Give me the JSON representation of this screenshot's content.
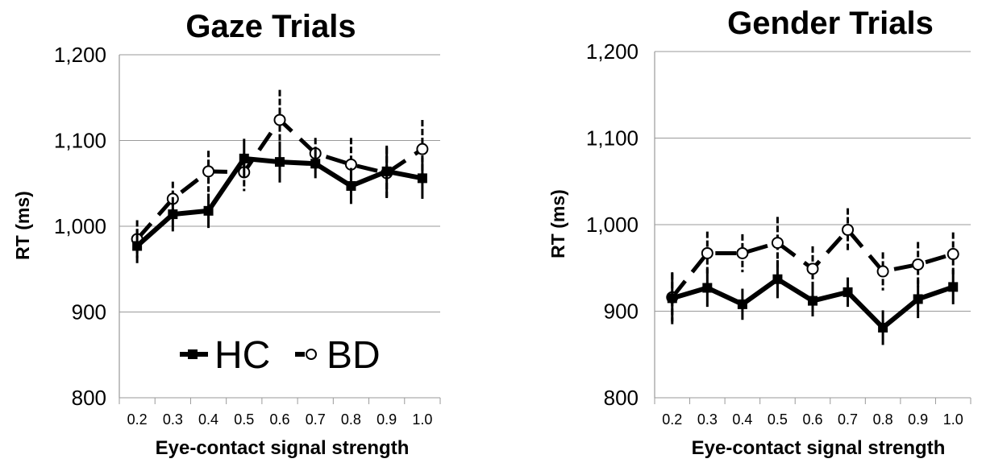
{
  "chart_data": [
    {
      "type": "line",
      "title": "Gaze Trials",
      "xlabel": "Eye-contact signal strength",
      "ylabel": "RT (ms)",
      "categories": [
        "0.2",
        "0.3",
        "0.4",
        "0.5",
        "0.6",
        "0.7",
        "0.8",
        "0.9",
        "1.0"
      ],
      "ylim": [
        800,
        1200
      ],
      "yticks": [
        "800",
        "900",
        "1,000",
        "1,100",
        "1,200"
      ],
      "grid": true,
      "legend_position": "bottom-center",
      "series": [
        {
          "name": "HC",
          "marker": "square",
          "line": "solid",
          "values": [
            977,
            1014,
            1018,
            1079,
            1075,
            1073,
            1047,
            1064,
            1056
          ],
          "err": [
            20,
            20,
            20,
            23,
            24,
            17,
            21,
            30,
            24
          ]
        },
        {
          "name": "BD",
          "marker": "circle",
          "line": "dashed",
          "values": [
            985,
            1032,
            1064,
            1063,
            1124,
            1085,
            1072,
            1062,
            1090
          ],
          "err": [
            22,
            20,
            24,
            22,
            35,
            18,
            31,
            30,
            34
          ]
        }
      ]
    },
    {
      "type": "line",
      "title": "Gender Trials",
      "xlabel": "Eye-contact signal strength",
      "ylabel": "RT (ms)",
      "categories": [
        "0.2",
        "0.3",
        "0.4",
        "0.5",
        "0.6",
        "0.7",
        "0.8",
        "0.9",
        "1.0"
      ],
      "ylim": [
        800,
        1200
      ],
      "yticks": [
        "800",
        "900",
        "1,000",
        "1,100",
        "1,200"
      ],
      "grid": true,
      "series": [
        {
          "name": "HC",
          "marker": "square",
          "line": "solid",
          "values": [
            915,
            927,
            908,
            937,
            912,
            922,
            881,
            914,
            928
          ],
          "err": [
            30,
            22,
            18,
            22,
            18,
            17,
            20,
            22,
            20
          ]
        },
        {
          "name": "BD",
          "marker": "circle",
          "line": "dashed",
          "values": [
            916,
            967,
            967,
            979,
            949,
            994,
            946,
            954,
            966
          ],
          "err": [
            28,
            25,
            22,
            30,
            26,
            25,
            22,
            26,
            25
          ]
        }
      ]
    }
  ],
  "legend": {
    "hc_label": "HC",
    "bd_label": "BD"
  },
  "colors": {
    "line": "#000000",
    "grid": "#9a9a9a",
    "marker_fill_open": "#ffffff"
  }
}
